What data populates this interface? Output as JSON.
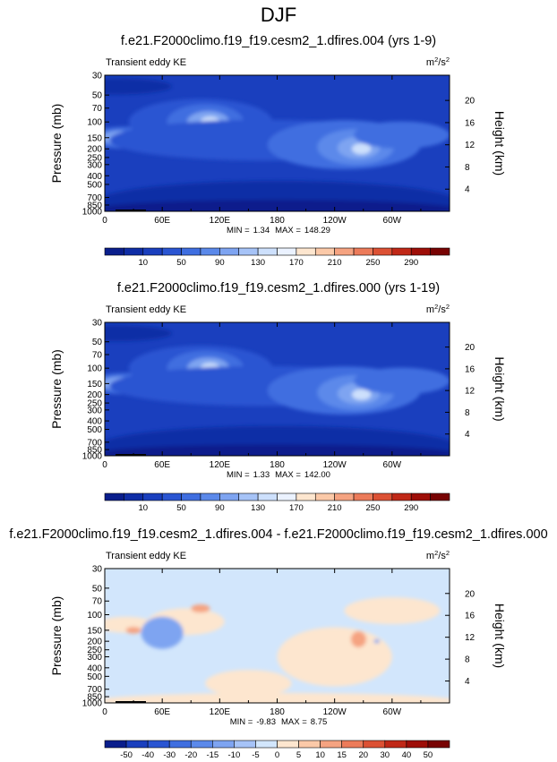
{
  "figure_title": "DJF",
  "chart_data": [
    {
      "type": "heatmap",
      "title": "f.e21.F2000climo.f19_f19.cesm2_1.dfires.004 (yrs 1-9)",
      "left_label": "Transient eddy KE",
      "units": {
        "base": "m",
        "sup1": "2",
        "mid": "/s",
        "sup2": "2"
      },
      "ylabel": "Pressure (mb)",
      "y2label": "Height (km)",
      "xticks": [
        "0",
        "60E",
        "120E",
        "180",
        "120W",
        "60W"
      ],
      "xtick_lon": [
        0,
        60,
        120,
        180,
        240,
        300
      ],
      "xlim": [
        0,
        360
      ],
      "yticks": [
        "30",
        "50",
        "70",
        "100",
        "150",
        "200",
        "250",
        "300",
        "400",
        "500",
        "700",
        "850",
        "1000"
      ],
      "ytick_p": [
        30,
        50,
        70,
        100,
        150,
        200,
        250,
        300,
        400,
        500,
        700,
        850,
        1000
      ],
      "ylim": [
        30,
        1000
      ],
      "y_scale": "log",
      "y2ticks": [
        "20",
        "16",
        "12",
        "8",
        "4"
      ],
      "y2tick_km": [
        20,
        16,
        12,
        8,
        4
      ],
      "min_label": "MIN =",
      "min_value": "1.34",
      "max_label": "MAX =",
      "max_value": "148.29",
      "cb_labels": [
        "10",
        "50",
        "90",
        "130",
        "170",
        "210",
        "250",
        "290"
      ],
      "cb_colors": [
        "#0a1e8c",
        "#0f2da6",
        "#1a3fbe",
        "#2a55d2",
        "#3f6ee0",
        "#5b89ea",
        "#7ea4f1",
        "#a6c3f7",
        "#cde0fc",
        "#ebf2ff",
        "#fde6cf",
        "#fbc9a8",
        "#f5a381",
        "#ec7b5a",
        "#dc5134",
        "#c02817",
        "#9e0e08",
        "#780303"
      ],
      "base_color": "#1a3fbe",
      "blobs": [
        {
          "lon": 20,
          "p": 150,
          "rlon": 36,
          "ry": 0.08,
          "color": "#3f6ee0"
        },
        {
          "lon": 15,
          "p": 150,
          "rlon": 18,
          "ry": 0.05,
          "color": "#7ea4f1"
        },
        {
          "lon": 100,
          "p": 100,
          "rlon": 75,
          "ry": 0.17,
          "color": "#2a55d2"
        },
        {
          "lon": 105,
          "p": 100,
          "rlon": 40,
          "ry": 0.13,
          "color": "#3f6ee0"
        },
        {
          "lon": 108,
          "p": 100,
          "rlon": 22,
          "ry": 0.08,
          "color": "#7ea4f1"
        },
        {
          "lon": 110,
          "p": 100,
          "rlon": 10,
          "ry": 0.04,
          "color": "#cde0fc"
        },
        {
          "lon": 165,
          "p": 160,
          "rlon": 160,
          "ry": 0.15,
          "color": "#2a55d2"
        },
        {
          "lon": 250,
          "p": 180,
          "rlon": 80,
          "ry": 0.18,
          "color": "#3f6ee0"
        },
        {
          "lon": 262,
          "p": 190,
          "rlon": 40,
          "ry": 0.13,
          "color": "#5b89ea"
        },
        {
          "lon": 265,
          "p": 195,
          "rlon": 22,
          "ry": 0.08,
          "color": "#7ea4f1"
        },
        {
          "lon": 268,
          "p": 200,
          "rlon": 10,
          "ry": 0.04,
          "color": "#cde0fc"
        },
        {
          "lon": 310,
          "p": 140,
          "rlon": 50,
          "ry": 0.1,
          "color": "#3f6ee0"
        },
        {
          "lon": 180,
          "p": 800,
          "rlon": 190,
          "ry": 0.16,
          "color": "#0f2da6"
        },
        {
          "lon": 180,
          "p": 950,
          "rlon": 190,
          "ry": 0.07,
          "color": "#0a1e8c"
        },
        {
          "lon": 10,
          "p": 40,
          "rlon": 60,
          "ry": 0.06,
          "color": "#0f2da6"
        }
      ]
    },
    {
      "type": "heatmap",
      "title": "f.e21.F2000climo.f19_f19.cesm2_1.dfires.000 (yrs 1-19)",
      "left_label": "Transient eddy KE",
      "units": {
        "base": "m",
        "sup1": "2",
        "mid": "/s",
        "sup2": "2"
      },
      "ylabel": "Pressure (mb)",
      "y2label": "Height (km)",
      "xticks": [
        "0",
        "60E",
        "120E",
        "180",
        "120W",
        "60W"
      ],
      "xtick_lon": [
        0,
        60,
        120,
        180,
        240,
        300
      ],
      "xlim": [
        0,
        360
      ],
      "yticks": [
        "30",
        "50",
        "70",
        "100",
        "150",
        "200",
        "250",
        "300",
        "400",
        "500",
        "700",
        "850",
        "1000"
      ],
      "ytick_p": [
        30,
        50,
        70,
        100,
        150,
        200,
        250,
        300,
        400,
        500,
        700,
        850,
        1000
      ],
      "ylim": [
        30,
        1000
      ],
      "y_scale": "log",
      "y2ticks": [
        "20",
        "16",
        "12",
        "8",
        "4"
      ],
      "y2tick_km": [
        20,
        16,
        12,
        8,
        4
      ],
      "min_label": "MIN =",
      "min_value": "1.33",
      "max_label": "MAX =",
      "max_value": "142.00",
      "cb_labels": [
        "10",
        "50",
        "90",
        "130",
        "170",
        "210",
        "250",
        "290"
      ],
      "cb_colors": [
        "#0a1e8c",
        "#0f2da6",
        "#1a3fbe",
        "#2a55d2",
        "#3f6ee0",
        "#5b89ea",
        "#7ea4f1",
        "#a6c3f7",
        "#cde0fc",
        "#ebf2ff",
        "#fde6cf",
        "#fbc9a8",
        "#f5a381",
        "#ec7b5a",
        "#dc5134",
        "#c02817",
        "#9e0e08",
        "#780303"
      ],
      "base_color": "#1a3fbe",
      "blobs": [
        {
          "lon": 20,
          "p": 150,
          "rlon": 36,
          "ry": 0.08,
          "color": "#3f6ee0"
        },
        {
          "lon": 15,
          "p": 150,
          "rlon": 18,
          "ry": 0.05,
          "color": "#7ea4f1"
        },
        {
          "lon": 100,
          "p": 100,
          "rlon": 75,
          "ry": 0.17,
          "color": "#2a55d2"
        },
        {
          "lon": 105,
          "p": 100,
          "rlon": 40,
          "ry": 0.13,
          "color": "#3f6ee0"
        },
        {
          "lon": 108,
          "p": 100,
          "rlon": 22,
          "ry": 0.08,
          "color": "#7ea4f1"
        },
        {
          "lon": 110,
          "p": 100,
          "rlon": 10,
          "ry": 0.04,
          "color": "#cde0fc"
        },
        {
          "lon": 165,
          "p": 160,
          "rlon": 160,
          "ry": 0.15,
          "color": "#2a55d2"
        },
        {
          "lon": 250,
          "p": 180,
          "rlon": 80,
          "ry": 0.18,
          "color": "#3f6ee0"
        },
        {
          "lon": 262,
          "p": 190,
          "rlon": 40,
          "ry": 0.13,
          "color": "#5b89ea"
        },
        {
          "lon": 265,
          "p": 195,
          "rlon": 22,
          "ry": 0.08,
          "color": "#7ea4f1"
        },
        {
          "lon": 268,
          "p": 200,
          "rlon": 10,
          "ry": 0.04,
          "color": "#cde0fc"
        },
        {
          "lon": 310,
          "p": 140,
          "rlon": 50,
          "ry": 0.1,
          "color": "#3f6ee0"
        },
        {
          "lon": 180,
          "p": 800,
          "rlon": 190,
          "ry": 0.16,
          "color": "#0f2da6"
        },
        {
          "lon": 180,
          "p": 950,
          "rlon": 190,
          "ry": 0.07,
          "color": "#0a1e8c"
        },
        {
          "lon": 10,
          "p": 40,
          "rlon": 60,
          "ry": 0.06,
          "color": "#0f2da6"
        }
      ]
    },
    {
      "type": "heatmap",
      "title": "f.e21.F2000climo.f19_f19.cesm2_1.dfires.004 - f.e21.F2000climo.f19_f19.cesm2_1.dfires.000",
      "left_label": "Transient eddy KE",
      "units": {
        "base": "m",
        "sup1": "2",
        "mid": "/s",
        "sup2": "2"
      },
      "ylabel": "Pressure (mb)",
      "y2label": "Height (km)",
      "xticks": [
        "0",
        "60E",
        "120E",
        "180",
        "120W",
        "60W"
      ],
      "xtick_lon": [
        0,
        60,
        120,
        180,
        240,
        300
      ],
      "xlim": [
        0,
        360
      ],
      "yticks": [
        "30",
        "50",
        "70",
        "100",
        "150",
        "200",
        "250",
        "300",
        "400",
        "500",
        "700",
        "850",
        "1000"
      ],
      "ytick_p": [
        30,
        50,
        70,
        100,
        150,
        200,
        250,
        300,
        400,
        500,
        700,
        850,
        1000
      ],
      "ylim": [
        30,
        1000
      ],
      "y_scale": "log",
      "y2ticks": [
        "20",
        "16",
        "12",
        "8",
        "4"
      ],
      "y2tick_km": [
        20,
        16,
        12,
        8,
        4
      ],
      "min_label": "MIN =",
      "min_value": "-9.83",
      "max_label": "MAX =",
      "max_value": "8.75",
      "cb_labels": [
        "-50",
        "-40",
        "-30",
        "-20",
        "-15",
        "-10",
        "-5",
        "0",
        "5",
        "10",
        "15",
        "20",
        "30",
        "40",
        "50"
      ],
      "cb_colors": [
        "#0a1e8c",
        "#1a3fbe",
        "#2a55d2",
        "#3f6ee0",
        "#5b89ea",
        "#7ea4f1",
        "#a6c3f7",
        "#d2e6fc",
        "#fde6cf",
        "#fbc9a8",
        "#f5a381",
        "#ec7b5a",
        "#dc5134",
        "#c02817",
        "#9e0e08",
        "#780303"
      ],
      "base_color": "#d2e6fc",
      "blobs": [
        {
          "lon": 22,
          "p": 130,
          "rlon": 30,
          "ry": 0.06,
          "color": "#fde6cf"
        },
        {
          "lon": 85,
          "p": 120,
          "rlon": 40,
          "ry": 0.1,
          "color": "#fde6cf"
        },
        {
          "lon": 240,
          "p": 300,
          "rlon": 60,
          "ry": 0.22,
          "color": "#fde6cf"
        },
        {
          "lon": 300,
          "p": 90,
          "rlon": 50,
          "ry": 0.1,
          "color": "#fde6cf"
        },
        {
          "lon": 150,
          "p": 600,
          "rlon": 45,
          "ry": 0.1,
          "color": "#fde6cf"
        },
        {
          "lon": 180,
          "p": 950,
          "rlon": 190,
          "ry": 0.06,
          "color": "#fde6cf"
        },
        {
          "lon": 60,
          "p": 160,
          "rlon": 22,
          "ry": 0.12,
          "color": "#7ea4f1"
        },
        {
          "lon": 100,
          "p": 85,
          "rlon": 10,
          "ry": 0.03,
          "color": "#f5a381"
        },
        {
          "lon": 30,
          "p": 150,
          "rlon": 8,
          "ry": 0.025,
          "color": "#f5a381"
        },
        {
          "lon": 265,
          "p": 190,
          "rlon": 8,
          "ry": 0.06,
          "color": "#f5a381"
        },
        {
          "lon": 284,
          "p": 200,
          "rlon": 3,
          "ry": 0.015,
          "color": "#7ea4f1"
        }
      ]
    }
  ]
}
